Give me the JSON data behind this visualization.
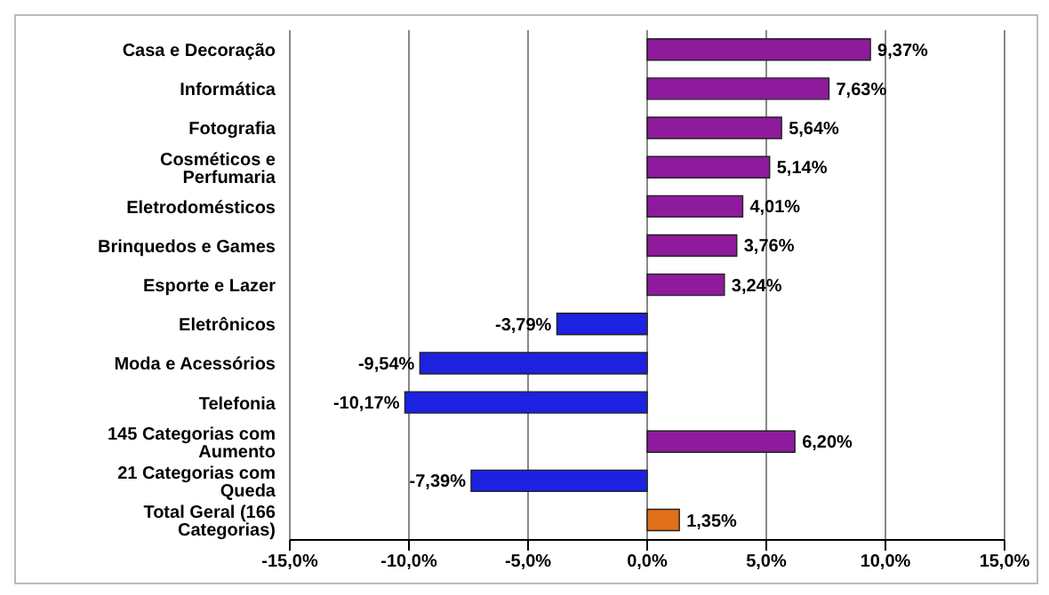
{
  "chart_data": {
    "type": "bar",
    "orientation": "horizontal",
    "categories": [
      "Casa e Decoração",
      "Informática",
      "Fotografia",
      "Cosméticos e Perfumaria",
      "Eletrodomésticos",
      "Brinquedos e Games",
      "Esporte e Lazer",
      "Eletrônicos",
      "Moda e Acessórios",
      "Telefonia",
      "145 Categorias com Aumento",
      "21 Categorias com Queda",
      "Total Geral (166 Categorias)"
    ],
    "values": [
      9.37,
      7.63,
      5.64,
      5.14,
      4.01,
      3.76,
      3.24,
      -3.79,
      -9.54,
      -10.17,
      6.2,
      -7.39,
      1.35
    ],
    "value_labels": [
      "9,37%",
      "7,63%",
      "5,64%",
      "5,14%",
      "4,01%",
      "3,76%",
      "3,24%",
      "-3,79%",
      "-9,54%",
      "-10,17%",
      "6,20%",
      "-7,39%",
      "1,35%"
    ],
    "colors": [
      "#8e1a9c",
      "#8e1a9c",
      "#8e1a9c",
      "#8e1a9c",
      "#8e1a9c",
      "#8e1a9c",
      "#8e1a9c",
      "#1c22e0",
      "#1c22e0",
      "#1c22e0",
      "#8e1a9c",
      "#1c22e0",
      "#e0701a"
    ],
    "xlim": [
      -15,
      15
    ],
    "xticks": [
      {
        "value": -15,
        "label": "-15,0%"
      },
      {
        "value": -10,
        "label": "-10,0%"
      },
      {
        "value": -5,
        "label": "-5,0%"
      },
      {
        "value": 0,
        "label": "0,0%"
      },
      {
        "value": 5,
        "label": "5,0%"
      },
      {
        "value": 10,
        "label": "10,0%"
      },
      {
        "value": 15,
        "label": "15,0%"
      }
    ],
    "grid": "x"
  }
}
